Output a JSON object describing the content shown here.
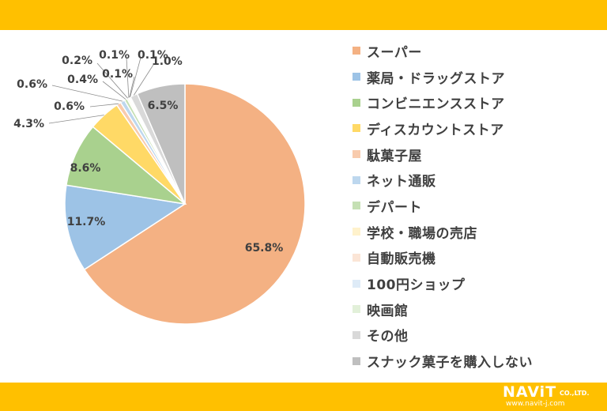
{
  "chart_data": {
    "type": "pie",
    "start_angle_deg": 0,
    "direction": "clockwise",
    "slices": [
      {
        "label": "スーパー",
        "value": 65.8,
        "value_label": "65.8%",
        "color": "#F4B183"
      },
      {
        "label": "薬局・ドラッグストア",
        "value": 11.7,
        "value_label": "11.7%",
        "color": "#9DC3E6"
      },
      {
        "label": "コンビニエンスストア",
        "value": 8.6,
        "value_label": "8.6%",
        "color": "#A9D18E"
      },
      {
        "label": "ディスカウントストア",
        "value": 4.3,
        "value_label": "4.3%",
        "color": "#FFD966"
      },
      {
        "label": "駄菓子屋",
        "value": 0.6,
        "value_label": "0.6%",
        "color": "#F8CBAD"
      },
      {
        "label": "ネット通販",
        "value": 0.6,
        "value_label": "0.6%",
        "color": "#BDD7EE"
      },
      {
        "label": "デパート",
        "value": 0.4,
        "value_label": "0.4%",
        "color": "#C5E0B4"
      },
      {
        "label": "学校・職場の売店",
        "value": 0.2,
        "value_label": "0.2%",
        "color": "#FFF2CC"
      },
      {
        "label": "自動販売機",
        "value": 0.1,
        "value_label": "0.1%",
        "color": "#FBE5D6"
      },
      {
        "label": "100円ショップ",
        "value": 0.1,
        "value_label": "0.1%",
        "color": "#DEEBF7"
      },
      {
        "label": "映画館",
        "value": 0.1,
        "value_label": "0.1%",
        "color": "#E2F0D9"
      },
      {
        "label": "その他",
        "value": 1.0,
        "value_label": "1.0%",
        "color": "#D9D9D9"
      },
      {
        "label": "スナック菓子を購入しない",
        "value": 6.5,
        "value_label": "6.5%",
        "color": "#BFBFBF"
      }
    ],
    "legend_position": "right"
  },
  "branding": {
    "logo_name": "NAViT",
    "logo_suffix": "CO.,LTD.",
    "logo_url": "www.navit-j.com",
    "band_color": "#FFC000"
  }
}
